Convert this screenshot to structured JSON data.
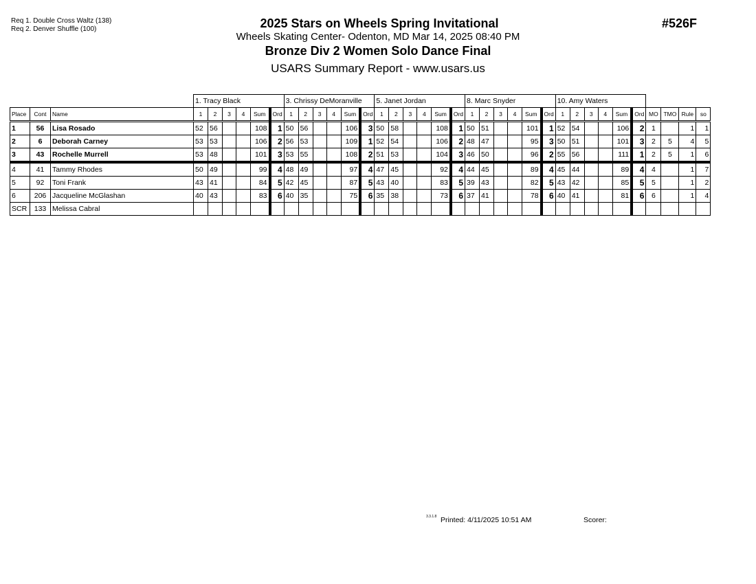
{
  "header": {
    "required": [
      "Req  1.  Double Cross Waltz (138)",
      "Req  2.  Denver Shuffle (100)"
    ],
    "title": "2025 Stars on Wheels Spring Invitational",
    "location": "Wheels Skating Center- Odenton, MD  Mar 14, 2025  08:40 PM",
    "event": "Bronze Div 2 Women Solo Dance Final",
    "report": "USARS Summary Report - www.usars.us",
    "event_number": "#526F"
  },
  "columns": {
    "place": "Place",
    "cont": "Cont",
    "name": "Name",
    "j1": "1",
    "j2": "2",
    "j3": "3",
    "j4": "4",
    "sum": "Sum",
    "ord": "Ord",
    "mo": "MO",
    "tmo": "TMO",
    "rule": "Rule",
    "so": "so"
  },
  "judges": [
    "1.  Tracy  Black",
    "3.  Chrissy DeMoranville",
    "5.  Janet Jordan",
    "8.  Marc Snyder",
    "10.  Amy Waters"
  ],
  "rows": [
    {
      "place": "1",
      "cont": "56",
      "name": "Lisa Rosado",
      "bold": true,
      "scores": [
        [
          "52",
          "56",
          "108",
          "1"
        ],
        [
          "50",
          "56",
          "106",
          "3"
        ],
        [
          "50",
          "58",
          "108",
          "1"
        ],
        [
          "50",
          "51",
          "101",
          "1"
        ],
        [
          "52",
          "54",
          "106",
          "2"
        ]
      ],
      "mo": "1",
      "tmo": "",
      "rule": "1",
      "so": "1"
    },
    {
      "place": "2",
      "cont": "6",
      "name": "Deborah Carney",
      "bold": true,
      "scores": [
        [
          "53",
          "53",
          "106",
          "2"
        ],
        [
          "56",
          "53",
          "109",
          "1"
        ],
        [
          "52",
          "54",
          "106",
          "2"
        ],
        [
          "48",
          "47",
          "95",
          "3"
        ],
        [
          "50",
          "51",
          "101",
          "3"
        ]
      ],
      "mo": "2",
      "tmo": "5",
      "rule": "4",
      "so": "5"
    },
    {
      "place": "3",
      "cont": "43",
      "name": "Rochelle Murrell",
      "bold": true,
      "scores": [
        [
          "53",
          "48",
          "101",
          "3"
        ],
        [
          "53",
          "55",
          "108",
          "2"
        ],
        [
          "51",
          "53",
          "104",
          "3"
        ],
        [
          "46",
          "50",
          "96",
          "2"
        ],
        [
          "55",
          "56",
          "111",
          "1"
        ]
      ],
      "mo": "2",
      "tmo": "5",
      "rule": "1",
      "so": "6"
    },
    {
      "place": "4",
      "cont": "41",
      "name": "Tammy Rhodes",
      "bold": false,
      "scores": [
        [
          "50",
          "49",
          "99",
          "4"
        ],
        [
          "48",
          "49",
          "97",
          "4"
        ],
        [
          "47",
          "45",
          "92",
          "4"
        ],
        [
          "44",
          "45",
          "89",
          "4"
        ],
        [
          "45",
          "44",
          "89",
          "4"
        ]
      ],
      "mo": "4",
      "tmo": "",
      "rule": "1",
      "so": "7"
    },
    {
      "place": "5",
      "cont": "92",
      "name": "Toni Frank",
      "bold": false,
      "scores": [
        [
          "43",
          "41",
          "84",
          "5"
        ],
        [
          "42",
          "45",
          "87",
          "5"
        ],
        [
          "43",
          "40",
          "83",
          "5"
        ],
        [
          "39",
          "43",
          "82",
          "5"
        ],
        [
          "43",
          "42",
          "85",
          "5"
        ]
      ],
      "mo": "5",
      "tmo": "",
      "rule": "1",
      "so": "2"
    },
    {
      "place": "6",
      "cont": "206",
      "name": "Jacqueline McGlashan",
      "bold": false,
      "scores": [
        [
          "40",
          "43",
          "83",
          "6"
        ],
        [
          "40",
          "35",
          "75",
          "6"
        ],
        [
          "35",
          "38",
          "73",
          "6"
        ],
        [
          "37",
          "41",
          "78",
          "6"
        ],
        [
          "40",
          "41",
          "81",
          "6"
        ]
      ],
      "mo": "6",
      "tmo": "",
      "rule": "1",
      "so": "4"
    },
    {
      "place": "SCR",
      "cont": "133",
      "name": "Melissa Cabral",
      "bold": false,
      "scores": [
        [
          "",
          "",
          "",
          ""
        ],
        [
          "",
          "",
          "",
          ""
        ],
        [
          "",
          "",
          "",
          ""
        ],
        [
          "",
          "",
          "",
          ""
        ],
        [
          "",
          "",
          "",
          ""
        ]
      ],
      "mo": "",
      "tmo": "",
      "rule": "",
      "so": ""
    }
  ],
  "footer": {
    "version": "3.3.1.8",
    "printed": "Printed:  4/11/2025  10:51 AM",
    "scorer": "Scorer:"
  }
}
